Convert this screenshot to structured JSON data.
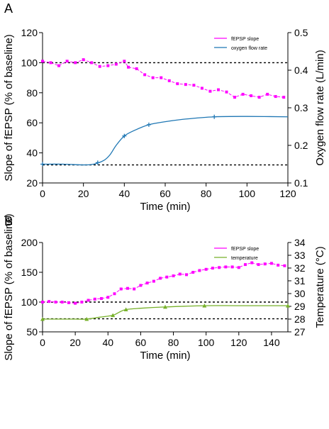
{
  "colors": {
    "fepsp": "#ff00ff",
    "oxygen": "#1f77b4",
    "temperature": "#77b12a",
    "axis": "#000000",
    "reference": "#000000"
  },
  "chart_data": [
    {
      "panel_label": "A",
      "type": "line",
      "xlabel": "Time (min)",
      "ylabel": "Slope of fEPSP (% of baseline)",
      "y2label": "Oxygen flow rate (L/min)",
      "xlim": [
        0,
        120
      ],
      "ylim": [
        20,
        120
      ],
      "y2lim": [
        0.1,
        0.5
      ],
      "xticks": [
        "0",
        "20",
        "40",
        "60",
        "80",
        "100",
        "120"
      ],
      "yticks": [
        "20",
        "40",
        "60",
        "80",
        "100",
        "120"
      ],
      "y2ticks": [
        "0.1",
        "0.2",
        "0.3",
        "0.4",
        "0.5"
      ],
      "legend": [
        "fEPSP slope",
        "oxygen flow rate"
      ],
      "legend_position": "top-right",
      "reference_lines_left_axis": [
        100,
        32
      ],
      "series": [
        {
          "name": "fEPSP slope",
          "axis": "left",
          "x": [
            0,
            4,
            8,
            12,
            16,
            20,
            24,
            28,
            32,
            36,
            40,
            42,
            46,
            50,
            54,
            58,
            62,
            66,
            70,
            74,
            78,
            82,
            86,
            90,
            94,
            98,
            102,
            106,
            110,
            114,
            118
          ],
          "y": [
            101,
            100,
            98,
            101,
            100,
            102,
            100,
            97.5,
            98,
            99,
            101,
            97,
            96,
            92,
            90,
            90,
            88,
            86,
            85.5,
            85,
            83,
            81,
            82,
            80.5,
            77,
            79,
            78,
            77,
            79,
            77.5,
            77
          ]
        },
        {
          "name": "oxygen flow rate",
          "axis": "right",
          "x": [
            0,
            10,
            20,
            25,
            30,
            33,
            36,
            40,
            45,
            52,
            60,
            70,
            84,
            100,
            120
          ],
          "y": [
            0.15,
            0.15,
            0.148,
            0.15,
            0.16,
            0.175,
            0.2,
            0.225,
            0.24,
            0.255,
            0.263,
            0.27,
            0.276,
            0.277,
            0.276
          ],
          "markers_x": [
            0,
            27,
            40,
            52,
            84
          ]
        }
      ]
    },
    {
      "panel_label": "B",
      "type": "line",
      "xlabel": "Time (min)",
      "ylabel": "Slope of fEPSP (% of baseline)",
      "y2label": "Temperature (°C)",
      "xlim": [
        0,
        150
      ],
      "ylim": [
        50,
        200
      ],
      "y2lim": [
        27,
        34
      ],
      "xticks": [
        "0",
        "20",
        "40",
        "60",
        "80",
        "100",
        "120",
        "140"
      ],
      "yticks": [
        "50",
        "100",
        "150",
        "200"
      ],
      "y2ticks": [
        "27",
        "28",
        "29",
        "30",
        "31",
        "32",
        "33",
        "34"
      ],
      "legend": [
        "fEPSP slope",
        "temperature"
      ],
      "legend_position": "top-right",
      "reference_lines_left_axis": [
        100,
        72
      ],
      "series": [
        {
          "name": "fEPSP slope",
          "axis": "left",
          "x": [
            0,
            4,
            8,
            12,
            16,
            20,
            24,
            28,
            32,
            36,
            40,
            44,
            48,
            52,
            56,
            60,
            64,
            68,
            72,
            76,
            80,
            84,
            88,
            92,
            96,
            100,
            104,
            108,
            112,
            116,
            120,
            124,
            128,
            132,
            136,
            140,
            144,
            148
          ],
          "y": [
            100,
            101,
            100,
            100,
            99,
            98,
            100,
            103,
            105,
            106,
            108,
            114,
            122,
            123,
            122,
            128,
            132,
            135,
            140,
            142,
            144,
            147,
            146,
            150,
            153,
            155,
            157,
            158,
            159,
            159,
            158,
            163,
            166,
            163,
            164,
            165,
            162,
            161
          ]
        },
        {
          "name": "temperature",
          "axis": "right",
          "x": [
            0,
            10,
            20,
            27,
            35,
            43,
            47,
            51,
            60,
            75,
            99,
            120,
            150
          ],
          "y": [
            28.0,
            28.0,
            28.0,
            28.0,
            28.15,
            28.3,
            28.55,
            28.75,
            28.85,
            28.95,
            29.05,
            29.05,
            29.05
          ],
          "markers_x": [
            0,
            27,
            43,
            51,
            75,
            99,
            150
          ]
        }
      ]
    }
  ]
}
